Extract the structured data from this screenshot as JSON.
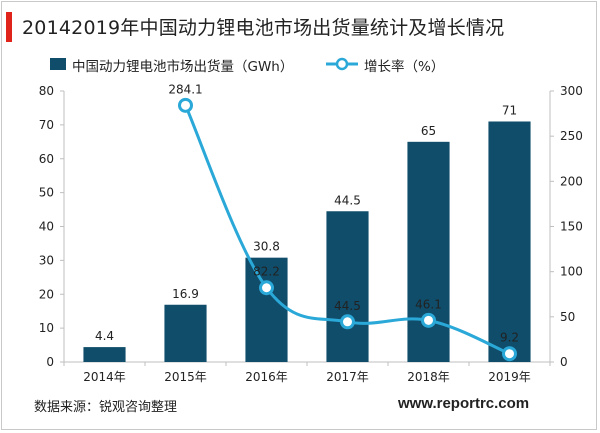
{
  "title": "20142019年中国动力锂电池市场出货量统计及增长情况",
  "source": "数据来源：锐观咨询整理",
  "watermark": "www.reportrc.com",
  "colors": {
    "bar": "#0f4d6b",
    "line": "#2aa8d8",
    "accent": "#e0241c"
  },
  "chart_data": {
    "type": "bar",
    "categories": [
      "2014年",
      "2015年",
      "2016年",
      "2017年",
      "2018年",
      "2019年"
    ],
    "series": [
      {
        "name": "中国动力锂电池市场出货量（GWh）",
        "type": "bar",
        "axis": "left",
        "values": [
          4.4,
          16.9,
          30.8,
          44.5,
          65,
          71
        ],
        "labels": [
          "4.4",
          "16.9",
          "30.8",
          "44.5",
          "65",
          "71"
        ]
      },
      {
        "name": "增长率（%）",
        "type": "line",
        "axis": "right",
        "values": [
          null,
          284.1,
          82.2,
          44.5,
          46.1,
          9.2
        ],
        "labels": [
          "",
          "284.1",
          "82.2",
          "44.5",
          "46.1",
          "9.2"
        ]
      }
    ],
    "left_axis": {
      "min": 0,
      "max": 80,
      "ticks": [
        0,
        10,
        20,
        30,
        40,
        50,
        60,
        70,
        80
      ]
    },
    "right_axis": {
      "min": 0,
      "max": 300,
      "ticks": [
        0,
        50,
        100,
        150,
        200,
        250,
        300
      ]
    },
    "legend_position": "top",
    "grid": false
  }
}
